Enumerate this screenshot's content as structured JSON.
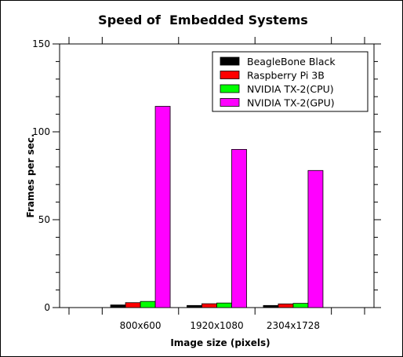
{
  "chart_data": {
    "type": "bar",
    "title": "Speed of  Embedded Systems",
    "xlabel": "Image size (pixels)",
    "ylabel": "Frames per sec.",
    "categories": [
      "800x600",
      "1920x1080",
      "2304x1728"
    ],
    "ylim": [
      0,
      150
    ],
    "yticks": [
      0,
      50,
      100,
      150
    ],
    "grid": false,
    "legend_position": "top-right",
    "series": [
      {
        "name": "BeagleBone Black",
        "color": "#000000",
        "values": [
          1.5,
          1.2,
          1.2
        ]
      },
      {
        "name": "Raspberry Pi 3B",
        "color": "#ff0000",
        "values": [
          2.8,
          2.2,
          2.1
        ]
      },
      {
        "name": "NVIDIA TX-2(CPU)",
        "color": "#00ff00",
        "values": [
          3.5,
          2.6,
          2.4
        ]
      },
      {
        "name": "NVIDIA TX-2(GPU)",
        "color": "#ff00ff",
        "values": [
          114.5,
          90.0,
          78.0
        ]
      }
    ]
  }
}
